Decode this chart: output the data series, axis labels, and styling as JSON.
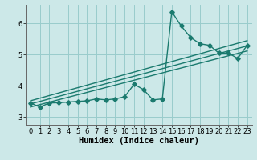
{
  "title": "",
  "xlabel": "Humidex (Indice chaleur)",
  "bg_color": "#cce8e8",
  "line_color": "#1a7a6e",
  "grid_color": "#99cccc",
  "x_ticks": [
    0,
    1,
    2,
    3,
    4,
    5,
    6,
    7,
    8,
    9,
    10,
    11,
    12,
    13,
    14,
    15,
    16,
    17,
    18,
    19,
    20,
    21,
    22,
    23
  ],
  "y_ticks": [
    3,
    4,
    5,
    6
  ],
  "xlim": [
    -0.5,
    23.5
  ],
  "ylim": [
    2.75,
    6.6
  ],
  "series1_x": [
    0,
    1,
    2,
    3,
    4,
    5,
    6,
    7,
    8,
    9,
    10,
    11,
    12,
    13,
    14,
    15,
    16,
    17,
    18,
    19,
    20,
    21,
    22,
    23
  ],
  "series1_y": [
    3.45,
    3.32,
    3.45,
    3.46,
    3.48,
    3.5,
    3.52,
    3.58,
    3.55,
    3.58,
    3.65,
    4.05,
    3.88,
    3.55,
    3.58,
    6.38,
    5.92,
    5.55,
    5.35,
    5.3,
    5.05,
    5.05,
    4.88,
    5.3
  ],
  "series2_x": [
    0,
    23
  ],
  "series2_y": [
    3.42,
    5.28
  ],
  "series3_x": [
    0,
    23
  ],
  "series3_y": [
    3.32,
    5.12
  ],
  "series4_x": [
    0,
    23
  ],
  "series4_y": [
    3.52,
    5.45
  ],
  "marker_size": 2.8,
  "line_width": 1.0,
  "font_size_xlabel": 7.5,
  "tick_fontsize": 6.0
}
